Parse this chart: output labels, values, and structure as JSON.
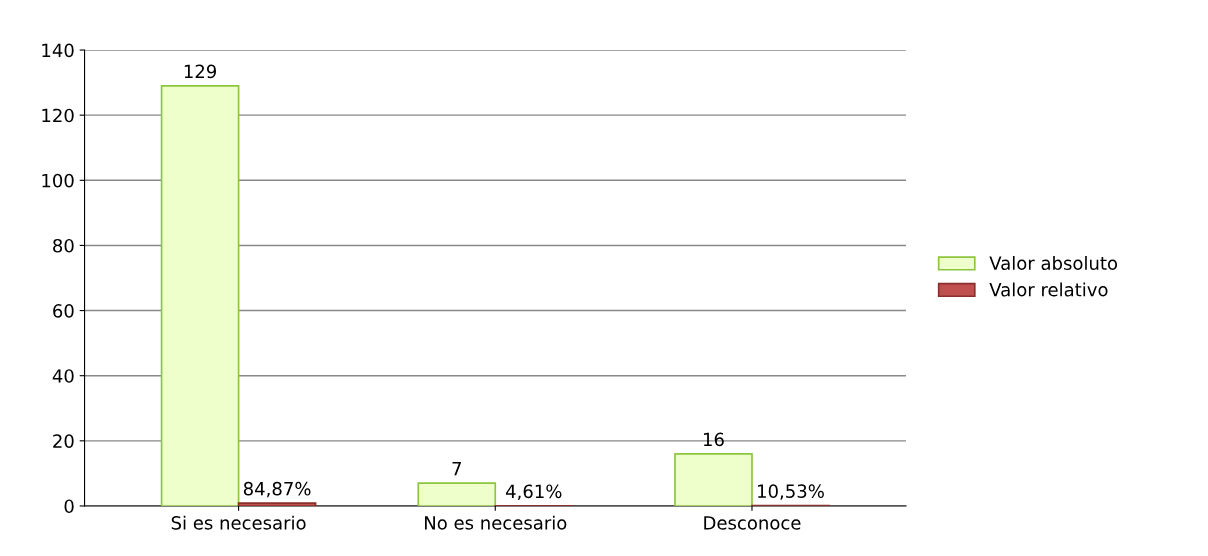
{
  "chart_data": {
    "type": "bar",
    "categories": [
      "Si es necesario",
      "No es necesario",
      "Desconoce"
    ],
    "series": [
      {
        "name": "Valor absoluto",
        "color": "#efffcc",
        "values": [
          129,
          7,
          16
        ],
        "value_labels": [
          "129",
          "7",
          "16"
        ]
      },
      {
        "name": "Valor relativo",
        "color": "#c0504d",
        "values": [
          0.8487,
          0.0461,
          0.1053
        ],
        "value_labels": [
          "84,87%",
          "4,61%",
          "10,53%"
        ]
      }
    ],
    "ylim": [
      0,
      140
    ],
    "yticks": [
      0,
      20,
      40,
      60,
      80,
      100,
      120,
      140
    ],
    "grid": "y",
    "legend": "right"
  }
}
